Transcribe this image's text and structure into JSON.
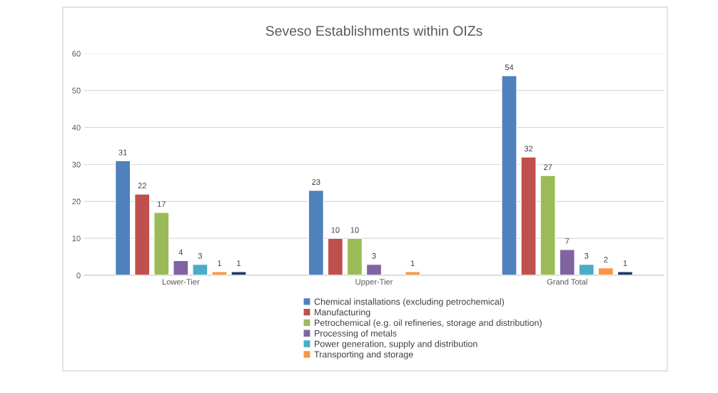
{
  "chart_data": {
    "type": "bar",
    "title": "Seveso Establishments within OIZs",
    "categories": [
      "Lower-Tier",
      "Upper-Tier",
      "Grand Total"
    ],
    "series": [
      {
        "name": "Chemical installations (excluding petrochemical)",
        "color": "#4f81bd",
        "values": [
          31,
          23,
          54
        ]
      },
      {
        "name": "Manufacturing",
        "color": "#c0504d",
        "values": [
          22,
          10,
          32
        ]
      },
      {
        "name": "Petrochemical (e.g. oil refineries, storage and distribution)",
        "color": "#9bbb59",
        "values": [
          17,
          10,
          27
        ]
      },
      {
        "name": "Processing of metals",
        "color": "#8064a2",
        "values": [
          4,
          3,
          7
        ]
      },
      {
        "name": "Power generation, supply and distribution",
        "color": "#4bacc6",
        "values": [
          3,
          null,
          3
        ]
      },
      {
        "name": "Transporting and storage",
        "color": "#f79646",
        "values": [
          1,
          1,
          2
        ]
      },
      {
        "color": "#1f3864",
        "values": [
          1,
          null,
          1
        ]
      }
    ],
    "ylim": [
      0,
      60
    ],
    "yticks": [
      0,
      10,
      20,
      30,
      40,
      50,
      60
    ],
    "grid": "y",
    "legend": "bottom",
    "data_labels": true
  }
}
